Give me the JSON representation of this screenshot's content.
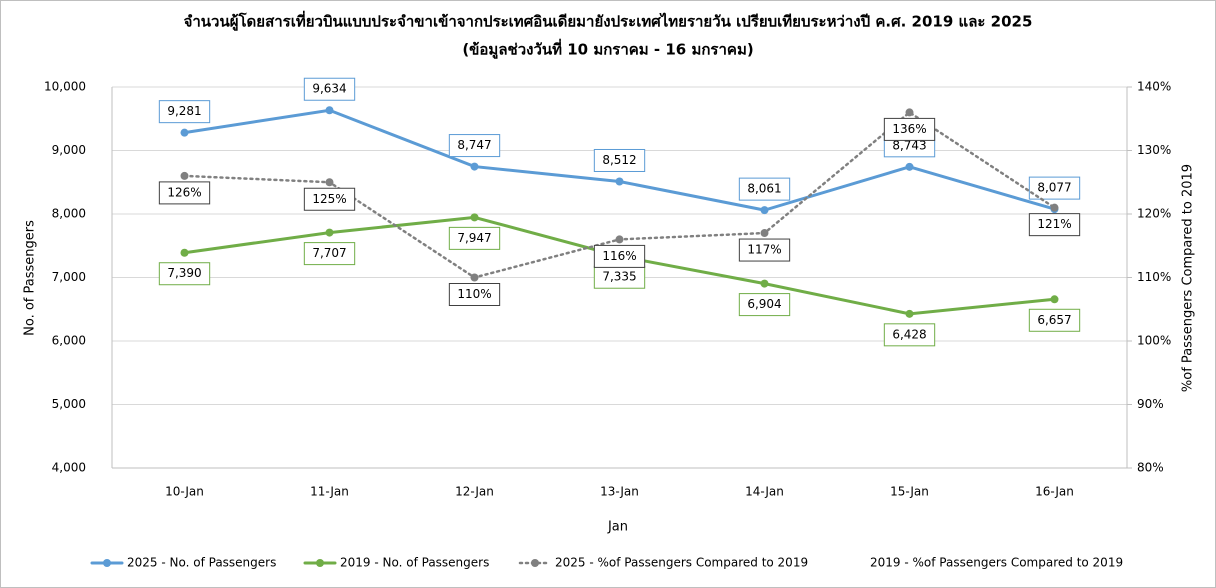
{
  "chart_data": {
    "type": "line",
    "title": "จำนวนผู้โดยสารเที่ยวบินแบบประจำขาเข้าจากประเทศอินเดียมายังประเทศไทยรายวัน เปรียบเทียบระหว่างปี ค.ศ. 2019 และ 2025",
    "subtitle": "(ข้อมูลช่วงวันที่ 10 มกราคม - 16 มกราคม)",
    "x_label": "Jan",
    "y_label": "No. of Passengers",
    "y2_label": "%of Passengers Compared to 2019",
    "categories": [
      "10-Jan",
      "11-Jan",
      "12-Jan",
      "13-Jan",
      "14-Jan",
      "15-Jan",
      "16-Jan"
    ],
    "ylim": [
      4000,
      10000
    ],
    "yticks": [
      {
        "value": 4000,
        "label": "4,000"
      },
      {
        "value": 5000,
        "label": "5,000"
      },
      {
        "value": 6000,
        "label": "6,000"
      },
      {
        "value": 7000,
        "label": "7,000"
      },
      {
        "value": 8000,
        "label": "8,000"
      },
      {
        "value": 9000,
        "label": "9,000"
      },
      {
        "value": 10000,
        "label": "10,000"
      }
    ],
    "y2lim": [
      80,
      140
    ],
    "y2ticks": [
      {
        "value": 80,
        "label": "80%"
      },
      {
        "value": 90,
        "label": "90%"
      },
      {
        "value": 100,
        "label": "100%"
      },
      {
        "value": 110,
        "label": "110%"
      },
      {
        "value": 120,
        "label": "120%"
      },
      {
        "value": 130,
        "label": "130%"
      },
      {
        "value": 140,
        "label": "140%"
      }
    ],
    "grid": true,
    "legend": "bottom",
    "series": [
      {
        "name": "2025 - No. of Passengers",
        "color": "#5b9bd5",
        "style": "solid",
        "values": [
          9281,
          9634,
          8747,
          8512,
          8061,
          8743,
          8077
        ],
        "value_labels": [
          "9,281",
          "9,634",
          "8,747",
          "8,512",
          "8,061",
          "8,743",
          "8,077"
        ]
      },
      {
        "name": "2019 - No. of Passengers",
        "color": "#70ad47",
        "style": "solid",
        "values": [
          7390,
          7707,
          7947,
          7335,
          6904,
          6428,
          6657
        ],
        "value_labels": [
          "7,390",
          "7,707",
          "7,947",
          "7,335",
          "6,904",
          "6,428",
          "6,657"
        ]
      },
      {
        "name": "2025 - %of Passengers Compared to 2019",
        "color": "#808080",
        "style": "dotted",
        "axis": "y2",
        "values": [
          126,
          125,
          110,
          116,
          117,
          136,
          121
        ],
        "value_labels": [
          "126%",
          "125%",
          "110%",
          "116%",
          "117%",
          "136%",
          "121%"
        ]
      },
      {
        "name": "2019 - %of Passengers Compared to 2019",
        "axis": "y2",
        "values": [
          null,
          null,
          null,
          null,
          null,
          null,
          null
        ]
      }
    ]
  }
}
